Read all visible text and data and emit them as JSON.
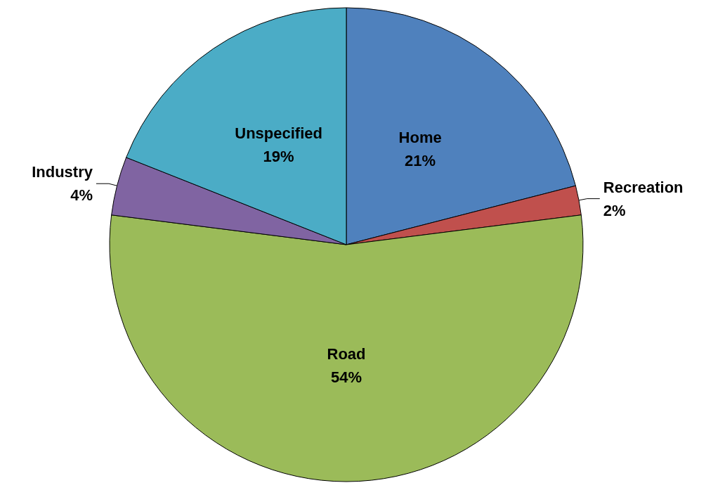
{
  "chart_data": {
    "type": "pie",
    "categories": [
      "Home",
      "Recreation",
      "Road",
      "Industry",
      "Unspecified"
    ],
    "values": [
      21,
      2,
      54,
      4,
      19
    ],
    "colors": [
      "#4f81bd",
      "#c0504d",
      "#9bbb59",
      "#8064a2",
      "#4bacc6"
    ],
    "value_labels": [
      "21%",
      "2%",
      "54%",
      "4%",
      "19%"
    ],
    "legend": false
  }
}
